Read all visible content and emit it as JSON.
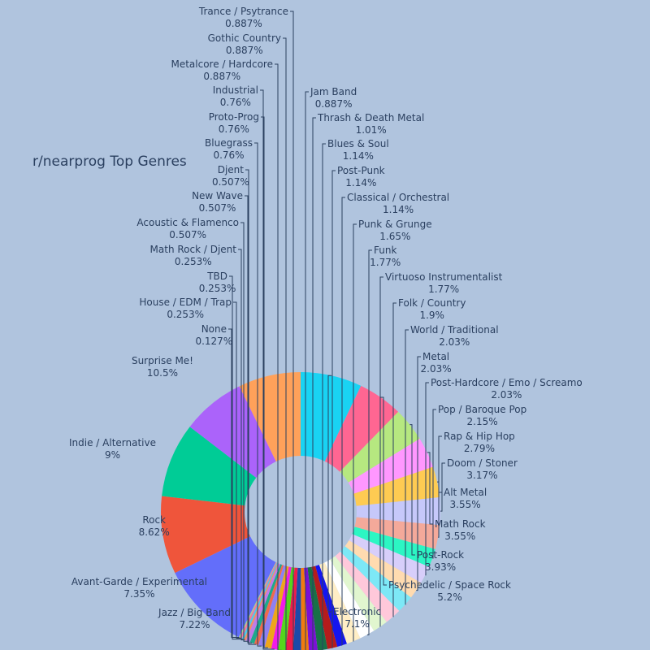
{
  "chart_data": {
    "type": "pie",
    "title": "r/nearprog Top Genres",
    "hole": true,
    "background_color": "#b0c4de",
    "slices": [
      {
        "label": "Electronic",
        "value": 7.1,
        "percent_text": "7.1%",
        "color": "#19d3f3"
      },
      {
        "label": "Psychedelic / Space Rock",
        "value": 5.2,
        "percent_text": "5.2%",
        "color": "#ff6692"
      },
      {
        "label": "Post-Rock",
        "value": 3.93,
        "percent_text": "3.93%",
        "color": "#b6e880"
      },
      {
        "label": "Math Rock",
        "value": 3.55,
        "percent_text": "3.55%",
        "color": "#ff97ff"
      },
      {
        "label": "Alt Metal",
        "value": 3.55,
        "percent_text": "3.55%",
        "color": "#fecb52"
      },
      {
        "label": "Doom / Stoner",
        "value": 3.17,
        "percent_text": "3.17%",
        "color": "#c6c8fa"
      },
      {
        "label": "Rap & Hip Hop",
        "value": 2.79,
        "percent_text": "2.79%",
        "color": "#f4a99a"
      },
      {
        "label": "Pop / Baroque Pop",
        "value": 2.15,
        "percent_text": "2.15%",
        "color": "#2cf6c3"
      },
      {
        "label": "Post-Hardcore / Emo / Screamo",
        "value": 2.03,
        "percent_text": "2.03%",
        "color": "#d7cefa"
      },
      {
        "label": "Metal",
        "value": 2.03,
        "percent_text": "2.03%",
        "color": "#ffdbb0"
      },
      {
        "label": "World / Traditional",
        "value": 2.03,
        "percent_text": "2.03%",
        "color": "#7de8f6"
      },
      {
        "label": "Folk / Country",
        "value": 1.9,
        "percent_text": "1.9%",
        "color": "#ffc8da"
      },
      {
        "label": "Virtuoso Instrumentalist",
        "value": 1.77,
        "percent_text": "1.77%",
        "color": "#e1f6cf"
      },
      {
        "label": "Funk",
        "value": 1.77,
        "percent_text": "1.77%",
        "color": "#ffffff"
      },
      {
        "label": "Punk & Grunge",
        "value": 1.65,
        "percent_text": "1.65%",
        "color": "#ffeec5"
      },
      {
        "label": "Classical / Orchestral",
        "value": 1.14,
        "percent_text": "1.14%",
        "color": "#1515f0"
      },
      {
        "label": "Post-Punk",
        "value": 1.14,
        "percent_text": "1.14%",
        "color": "#b51c1c"
      },
      {
        "label": "Blues & Soul",
        "value": 1.14,
        "percent_text": "1.14%",
        "color": "#187048"
      },
      {
        "label": "Thrash & Death Metal",
        "value": 1.01,
        "percent_text": "1.01%",
        "color": "#7b10d5"
      },
      {
        "label": "Jam Band",
        "value": 0.887,
        "percent_text": "0.887%",
        "color": "#f07a10"
      },
      {
        "label": "Trance / Psytrance",
        "value": 0.887,
        "percent_text": "0.887%",
        "color": "#1d4aa8"
      },
      {
        "label": "Gothic Country",
        "value": 0.887,
        "percent_text": "0.887%",
        "color": "#ec1c4a"
      },
      {
        "label": "Metalcore / Hardcore",
        "value": 0.887,
        "percent_text": "0.887%",
        "color": "#55d61c"
      },
      {
        "label": "Industrial",
        "value": 0.76,
        "percent_text": "0.76%",
        "color": "#f21ce8"
      },
      {
        "label": "Proto-Prog",
        "value": 0.76,
        "percent_text": "0.76%",
        "color": "#eea61a"
      },
      {
        "label": "Bluegrass",
        "value": 0.76,
        "percent_text": "0.76%",
        "color": "#8f80f2"
      },
      {
        "label": "Djent",
        "value": 0.507,
        "percent_text": "0.507%",
        "color": "#ef6a4e"
      },
      {
        "label": "New Wave",
        "value": 0.507,
        "percent_text": "0.507%",
        "color": "#1ea98a"
      },
      {
        "label": "Acoustic & Flamenco",
        "value": 0.507,
        "percent_text": "0.507%",
        "color": "#c07ce8"
      },
      {
        "label": "Math Rock / Djent",
        "value": 0.253,
        "percent_text": "0.253%",
        "color": "#f08f64"
      },
      {
        "label": "TBD",
        "value": 0.253,
        "percent_text": "0.253%",
        "color": "#4ec8e8"
      },
      {
        "label": "House / EDM / Trap",
        "value": 0.253,
        "percent_text": "0.253%",
        "color": "#f07aa0"
      },
      {
        "label": "None",
        "value": 0.127,
        "percent_text": "0.127%",
        "color": "#a8e07c"
      },
      {
        "label": "Surprise Me!",
        "value": 10.5,
        "percent_text": "10.5%",
        "color": "#636efa"
      },
      {
        "label": "Indie / Alternative",
        "value": 9,
        "percent_text": "9%",
        "color": "#ef553b"
      },
      {
        "label": "Rock",
        "value": 8.62,
        "percent_text": "8.62%",
        "color": "#00cc96"
      },
      {
        "label": "Avant-Garde / Experimental",
        "value": 7.35,
        "percent_text": "7.35%",
        "color": "#ab63fa"
      },
      {
        "label": "Jazz / Big Band",
        "value": 7.22,
        "percent_text": "7.22%",
        "color": "#ffa15a"
      }
    ]
  }
}
